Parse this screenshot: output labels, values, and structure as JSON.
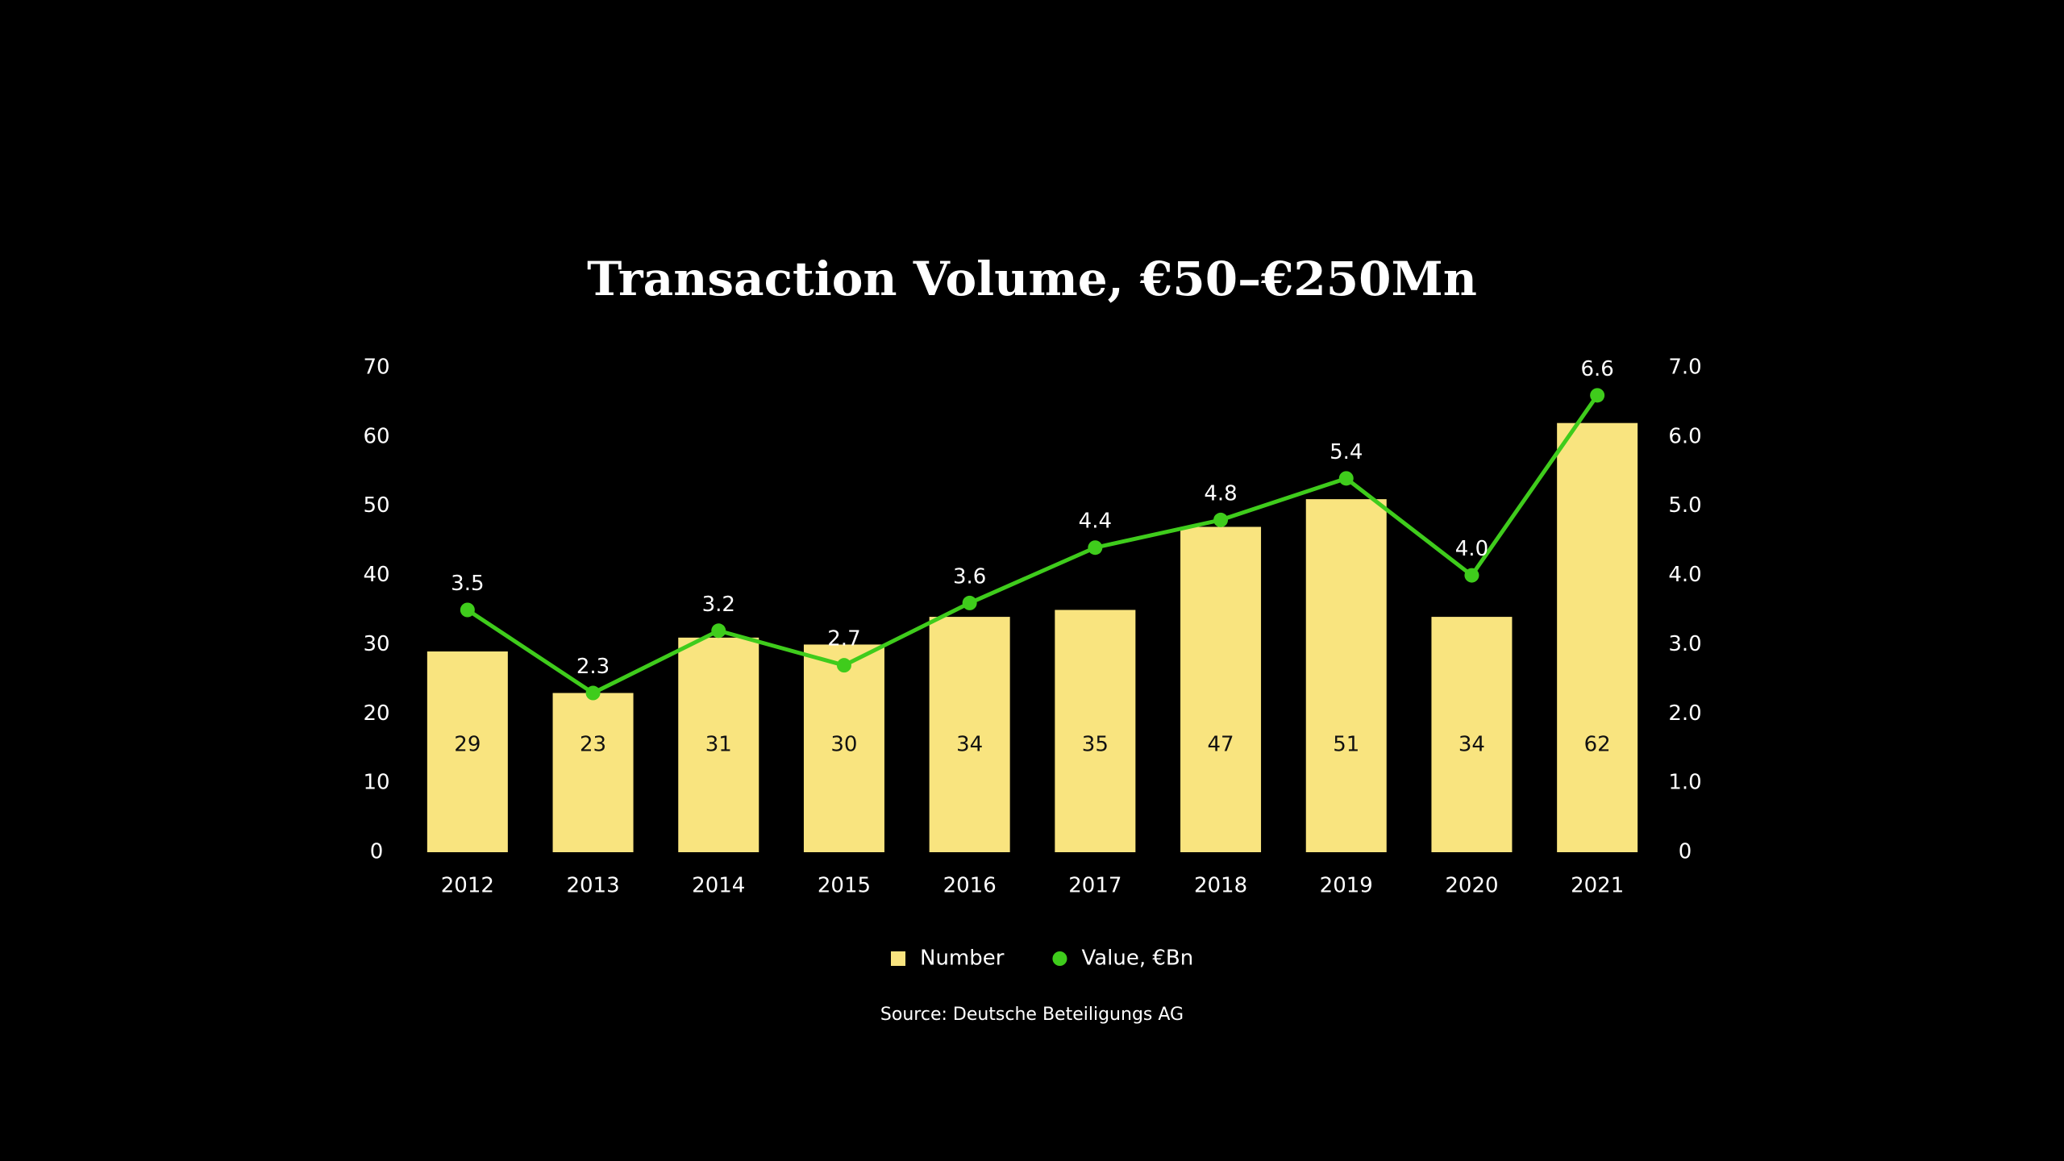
{
  "chart_data": {
    "type": "bar",
    "title": "Transaction Volume, €50–€250Mn",
    "source": "Source: Deutsche Beteiligungs AG",
    "categories": [
      "2012",
      "2013",
      "2014",
      "2015",
      "2016",
      "2017",
      "2018",
      "2019",
      "2020",
      "2021"
    ],
    "series": [
      {
        "name": "Number",
        "type": "bar",
        "color": "#f9e47f",
        "values": [
          29,
          23,
          31,
          30,
          34,
          35,
          47,
          51,
          34,
          62
        ]
      },
      {
        "name": "Value, €Bn",
        "type": "line",
        "axis": "y2",
        "color": "#3fcc1c",
        "values": [
          3.5,
          2.3,
          3.2,
          2.7,
          3.6,
          4.4,
          4.8,
          5.4,
          4.0,
          6.6
        ],
        "value_labels": [
          "3.5",
          "2.3",
          "3.2",
          "2.7",
          "3.6",
          "4.4",
          "4.8",
          "5.4",
          "4.0",
          "6.6"
        ]
      }
    ],
    "ylim": [
      0,
      70
    ],
    "yticks": [
      0,
      10,
      20,
      30,
      40,
      50,
      60,
      70
    ],
    "y2lim": [
      0,
      7
    ],
    "y2ticks": [
      0,
      {
        "value": 1,
        "label": "1.0"
      },
      {
        "value": 2,
        "label": "2.0"
      },
      {
        "value": 3,
        "label": "3.0"
      },
      {
        "value": 4,
        "label": "4.0"
      },
      {
        "value": 5,
        "label": "5.0"
      },
      {
        "value": 6,
        "label": "6.0"
      },
      {
        "value": 7,
        "label": "7.0"
      }
    ],
    "grid": false,
    "legend": "bottom"
  }
}
